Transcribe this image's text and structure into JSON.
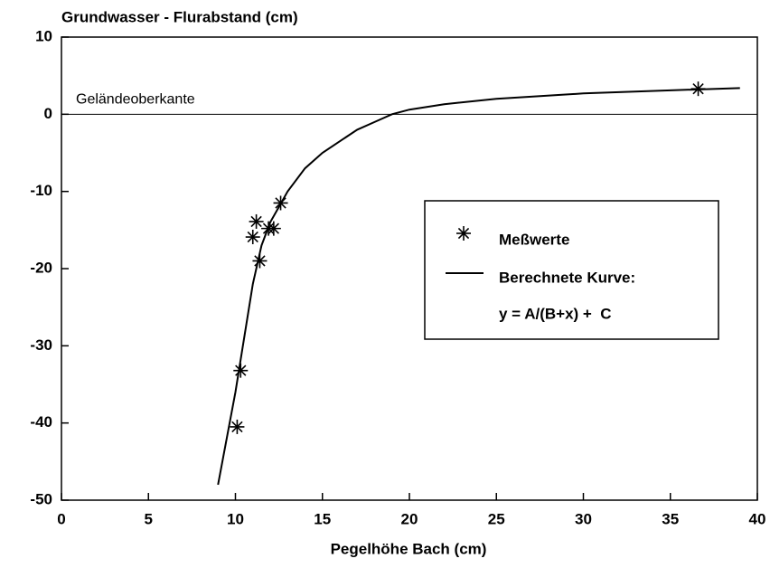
{
  "chart_data": {
    "type": "scatter",
    "title": "Grundwasser - Flurabstand (cm)",
    "x_label": "Pegelhöhe Bach (cm)",
    "xlim": [
      0,
      40
    ],
    "xticks": [
      0,
      5,
      10,
      15,
      20,
      25,
      30,
      35,
      40
    ],
    "ylim": [
      -50,
      10
    ],
    "yticks": [
      -50,
      -40,
      -30,
      -20,
      -10,
      0,
      10
    ],
    "reference_line": {
      "label": "Geländeoberkante",
      "value": 0
    },
    "legend_note": "y = A/(B+x) +  C",
    "legend_position": "right",
    "series": [
      {
        "name": "Meßwerte",
        "kind": "points",
        "color": "#000000",
        "x": [
          36.6,
          12.6,
          11.2,
          11.0,
          11.9,
          12.2,
          11.4,
          10.3,
          10.1
        ],
        "values": [
          3.3,
          -11.5,
          -13.9,
          -15.9,
          -14.8,
          -14.8,
          -19,
          -33.2,
          -40.5
        ]
      },
      {
        "name": "Berechnete Kurve:",
        "kind": "line",
        "color": "#000000",
        "x": [
          9,
          9.5,
          10,
          10.5,
          11,
          11.5,
          12,
          12.5,
          13,
          14,
          15,
          16,
          17,
          18,
          19,
          20,
          22,
          25,
          30,
          35,
          39
        ],
        "values": [
          -48,
          -42,
          -36,
          -29,
          -22,
          -17,
          -14,
          -12,
          -10,
          -7,
          -5,
          -3.5,
          -2,
          -1,
          0,
          0.6,
          1.3,
          2,
          2.7,
          3.1,
          3.4
        ]
      }
    ]
  }
}
